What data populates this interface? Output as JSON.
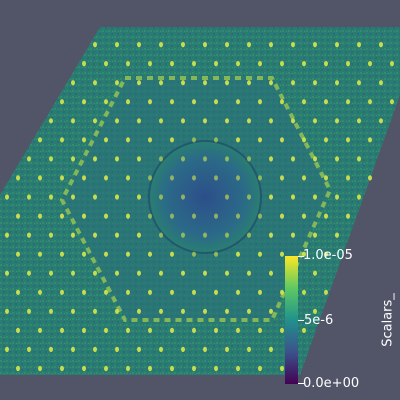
{
  "view": {
    "background_color": "#525468",
    "description_scalar": "Scalars_"
  },
  "colorbar": {
    "title": "Scalars_",
    "max_label": "1.0e-05",
    "mid_label": "5e-6",
    "min_label": "0.0e+00",
    "colors": [
      "#440154",
      "#3b528b",
      "#21918c",
      "#5ec962",
      "#fde725"
    ]
  },
  "pattern": {
    "field_color": "#2a7f72",
    "hex_ring_color": "#8fcf4a",
    "spot_color": "#d9e84a",
    "center_color": "#2e5a8a"
  }
}
